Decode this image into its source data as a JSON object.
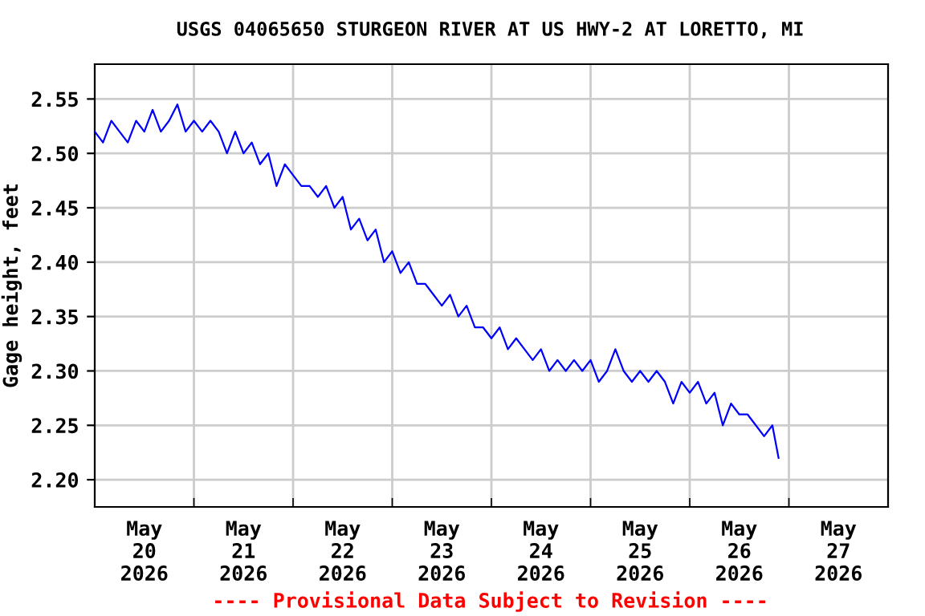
{
  "chart_data": {
    "type": "line",
    "title": "USGS 04065650 STURGEON RIVER AT US HWY-2 AT LORETTO, MI",
    "ylabel": "Gage height, feet",
    "x": [
      "2026-05-20T00:00",
      "2026-05-20T02:00",
      "2026-05-20T04:00",
      "2026-05-20T06:00",
      "2026-05-20T08:00",
      "2026-05-20T10:00",
      "2026-05-20T12:00",
      "2026-05-20T14:00",
      "2026-05-20T16:00",
      "2026-05-20T18:00",
      "2026-05-20T20:00",
      "2026-05-20T22:00",
      "2026-05-21T00:00",
      "2026-05-21T02:00",
      "2026-05-21T04:00",
      "2026-05-21T06:00",
      "2026-05-21T08:00",
      "2026-05-21T10:00",
      "2026-05-21T12:00",
      "2026-05-21T14:00",
      "2026-05-21T16:00",
      "2026-05-21T18:00",
      "2026-05-21T20:00",
      "2026-05-21T22:00",
      "2026-05-22T00:00",
      "2026-05-22T02:00",
      "2026-05-22T04:00",
      "2026-05-22T06:00",
      "2026-05-22T08:00",
      "2026-05-22T10:00",
      "2026-05-22T12:00",
      "2026-05-22T14:00",
      "2026-05-22T16:00",
      "2026-05-22T18:00",
      "2026-05-22T20:00",
      "2026-05-22T22:00",
      "2026-05-23T00:00",
      "2026-05-23T02:00",
      "2026-05-23T04:00",
      "2026-05-23T06:00",
      "2026-05-23T08:00",
      "2026-05-23T10:00",
      "2026-05-23T12:00",
      "2026-05-23T14:00",
      "2026-05-23T16:00",
      "2026-05-23T18:00",
      "2026-05-23T20:00",
      "2026-05-23T22:00",
      "2026-05-24T00:00",
      "2026-05-24T02:00",
      "2026-05-24T04:00",
      "2026-05-24T06:00",
      "2026-05-24T08:00",
      "2026-05-24T10:00",
      "2026-05-24T12:00",
      "2026-05-24T14:00",
      "2026-05-24T16:00",
      "2026-05-24T18:00",
      "2026-05-24T20:00",
      "2026-05-24T22:00",
      "2026-05-25T00:00",
      "2026-05-25T02:00",
      "2026-05-25T04:00",
      "2026-05-25T06:00",
      "2026-05-25T08:00",
      "2026-05-25T10:00",
      "2026-05-25T12:00",
      "2026-05-25T14:00",
      "2026-05-25T16:00",
      "2026-05-25T18:00",
      "2026-05-25T20:00",
      "2026-05-25T22:00",
      "2026-05-26T00:00",
      "2026-05-26T02:00",
      "2026-05-26T04:00",
      "2026-05-26T06:00",
      "2026-05-26T08:00",
      "2026-05-26T10:00",
      "2026-05-26T12:00",
      "2026-05-26T14:00",
      "2026-05-26T16:00",
      "2026-05-26T18:00",
      "2026-05-26T20:00",
      "2026-05-26T21:30"
    ],
    "series": [
      {
        "color": "#0000ff",
        "values": [
          2.52,
          2.51,
          2.53,
          2.52,
          2.51,
          2.53,
          2.52,
          2.54,
          2.52,
          2.53,
          2.545,
          2.52,
          2.53,
          2.52,
          2.53,
          2.52,
          2.5,
          2.52,
          2.5,
          2.51,
          2.49,
          2.5,
          2.47,
          2.49,
          2.48,
          2.47,
          2.47,
          2.46,
          2.47,
          2.45,
          2.46,
          2.43,
          2.44,
          2.42,
          2.43,
          2.4,
          2.41,
          2.39,
          2.4,
          2.38,
          2.38,
          2.37,
          2.36,
          2.37,
          2.35,
          2.36,
          2.34,
          2.34,
          2.33,
          2.34,
          2.32,
          2.33,
          2.32,
          2.31,
          2.32,
          2.3,
          2.31,
          2.3,
          2.31,
          2.3,
          2.31,
          2.29,
          2.3,
          2.32,
          2.3,
          2.29,
          2.3,
          2.29,
          2.3,
          2.29,
          2.27,
          2.29,
          2.28,
          2.29,
          2.27,
          2.28,
          2.25,
          2.27,
          2.26,
          2.26,
          2.25,
          2.24,
          2.25,
          2.22
        ]
      }
    ],
    "xlim": [
      "2026-05-20T00:00",
      "2026-05-28T00:00"
    ],
    "xticks": [
      {
        "value": "2026-05-20T12:00",
        "label": "May\n20\n2026"
      },
      {
        "value": "2026-05-21T12:00",
        "label": "May\n21\n2026"
      },
      {
        "value": "2026-05-22T12:00",
        "label": "May\n22\n2026"
      },
      {
        "value": "2026-05-23T12:00",
        "label": "May\n23\n2026"
      },
      {
        "value": "2026-05-24T12:00",
        "label": "May\n24\n2026"
      },
      {
        "value": "2026-05-25T12:00",
        "label": "May\n25\n2026"
      },
      {
        "value": "2026-05-26T12:00",
        "label": "May\n26\n2026"
      },
      {
        "value": "2026-05-27T12:00",
        "label": "May\n27\n2026"
      },
      {
        "value": "2026-05-21T00:00",
        "label": null
      },
      {
        "value": "2026-05-22T00:00",
        "label": null
      },
      {
        "value": "2026-05-23T00:00",
        "label": null
      },
      {
        "value": "2026-05-24T00:00",
        "label": null
      },
      {
        "value": "2026-05-25T00:00",
        "label": null
      },
      {
        "value": "2026-05-26T00:00",
        "label": null
      },
      {
        "value": "2026-05-27T00:00",
        "label": null
      }
    ],
    "ylim": [
      2.175,
      2.582
    ],
    "yticks": [
      {
        "value": 2.2,
        "label": "2.20"
      },
      2.25,
      {
        "value": 2.3,
        "label": "2.30"
      },
      2.35,
      {
        "value": 2.4,
        "label": "2.40"
      },
      2.45,
      {
        "value": 2.5,
        "label": "2.50"
      },
      2.55
    ],
    "grid": true,
    "marker": "none",
    "line_style": "solid",
    "legend": false,
    "annotations": [
      "---- Provisional Data Subject to Revision ----"
    ]
  }
}
